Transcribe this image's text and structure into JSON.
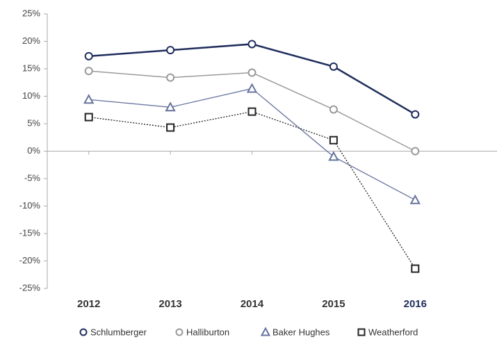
{
  "chart_data": {
    "type": "line",
    "categories": [
      "2012",
      "2013",
      "2014",
      "2015",
      "2016"
    ],
    "series": [
      {
        "name": "Schlumberger",
        "color": "#1f2d5c",
        "marker": "circle",
        "dash": "solid",
        "width": 2.5,
        "values": [
          17.3,
          18.4,
          19.5,
          15.4,
          6.7
        ]
      },
      {
        "name": "Halliburton",
        "color": "#9a9a9a",
        "marker": "circle",
        "dash": "solid",
        "width": 1.5,
        "values": [
          14.6,
          13.4,
          14.3,
          7.6,
          0
        ]
      },
      {
        "name": "Baker Hughes",
        "color": "#66739e",
        "marker": "triangle",
        "dash": "solid",
        "width": 1.3,
        "values": [
          9.4,
          8.0,
          11.4,
          -1.0,
          -8.9
        ]
      },
      {
        "name": "Weatherford",
        "color": "#222222",
        "marker": "square",
        "dash": "dotted",
        "width": 1.3,
        "values": [
          6.2,
          4.3,
          7.2,
          2.0,
          -21.4
        ]
      }
    ],
    "ylim": [
      -25,
      25
    ],
    "yticks": [
      {
        "value": -25,
        "label": "-25%"
      },
      {
        "value": -20,
        "label": "-20%"
      },
      {
        "value": -15,
        "label": "-15%"
      },
      {
        "value": -10,
        "label": "-10%"
      },
      {
        "value": -5,
        "label": "-5%"
      },
      {
        "value": 0,
        "label": "0%"
      },
      {
        "value": 5,
        "label": "5%"
      },
      {
        "value": 10,
        "label": "10%"
      },
      {
        "value": 15,
        "label": "15%"
      },
      {
        "value": 20,
        "label": "20%"
      },
      {
        "value": 25,
        "label": "25%"
      }
    ],
    "grid": false,
    "legend": "bottom"
  }
}
